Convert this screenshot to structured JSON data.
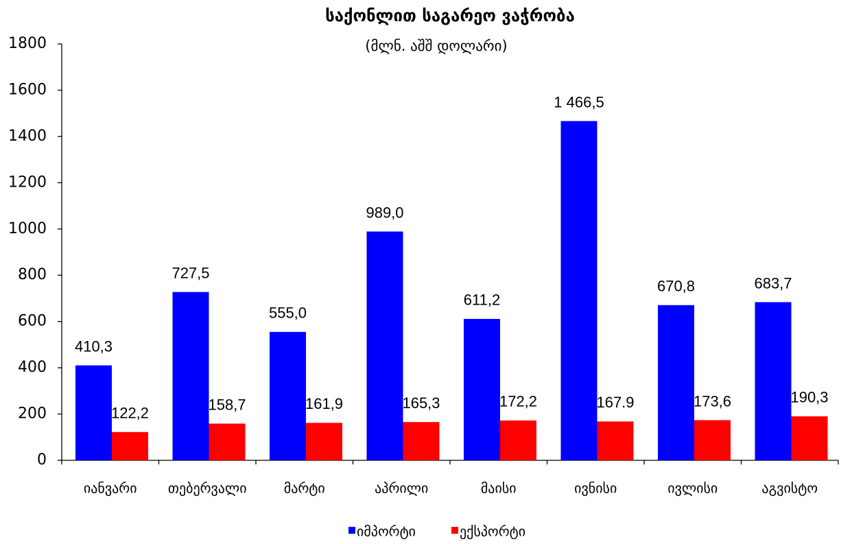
{
  "chart_data": {
    "type": "bar",
    "title": "საქონლით საგარეო ვაჭრობა",
    "subtitle": "(მლნ. აშშ დოლარი)",
    "categories": [
      "იანვარი",
      "თებერვალი",
      "მარტი",
      "აპრილი",
      "მაისი",
      "ივნისი",
      "ივლისი",
      "აგვისტო"
    ],
    "series": [
      {
        "name": "იმპორტი",
        "color": "#0000ff",
        "values": [
          410.3,
          727.5,
          555.0,
          989.0,
          611.2,
          1466.5,
          670.8,
          683.7
        ],
        "value_labels": [
          "410,3",
          "727,5",
          "555,0",
          "989,0",
          "611,2",
          "1 466,5",
          "670,8",
          "683,7"
        ]
      },
      {
        "name": "ექსპორტი",
        "color": "#ff0000",
        "values": [
          122.2,
          158.7,
          161.9,
          165.3,
          172.2,
          167.9,
          173.6,
          190.3
        ],
        "value_labels": [
          "122,2",
          "158,7",
          "161,9",
          "165,3",
          "172,2",
          "167.9",
          "173,6",
          "190,3"
        ]
      }
    ],
    "ylim": [
      0,
      1800
    ],
    "yticks": [
      0,
      200,
      400,
      600,
      800,
      1000,
      1200,
      1400,
      1600,
      1800
    ],
    "grid": false,
    "legend": "bottom"
  }
}
